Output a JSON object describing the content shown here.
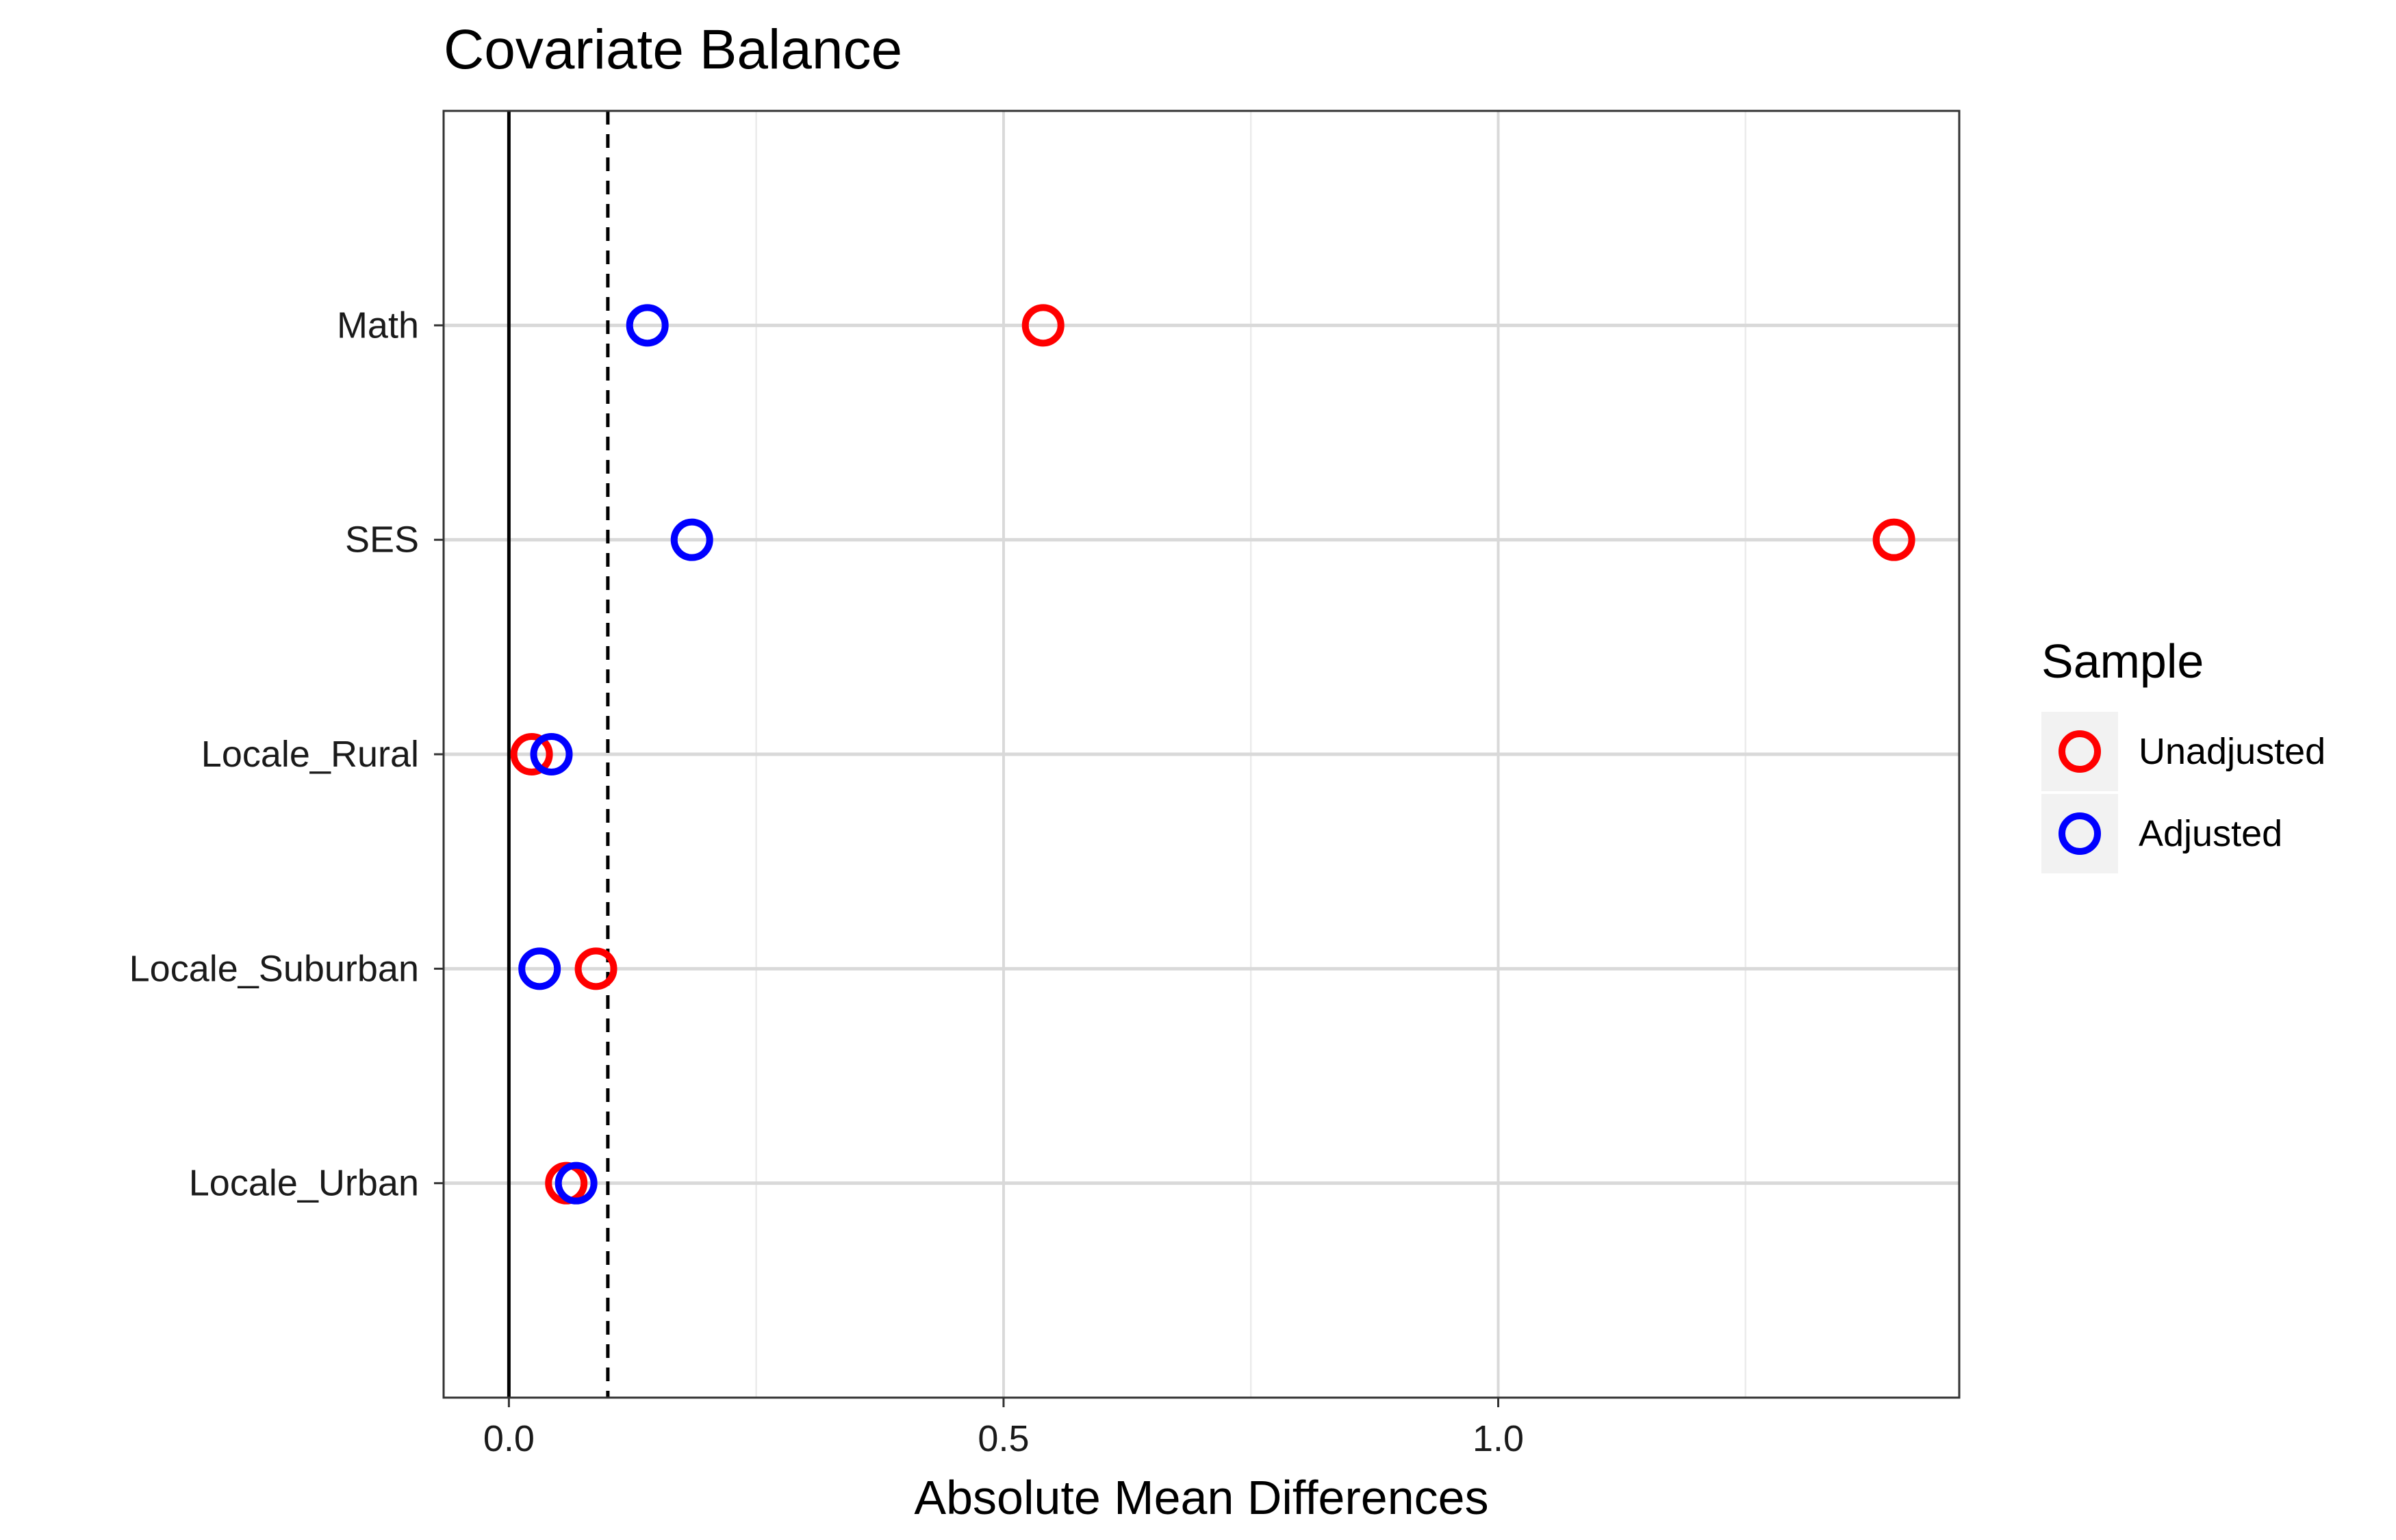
{
  "chart_data": {
    "type": "scatter",
    "title": "Covariate Balance",
    "xlabel": "Absolute Mean Differences",
    "ylabel": "",
    "xlim": [
      -0.066,
      1.466
    ],
    "x_ticks": [
      0.0,
      0.5,
      1.0
    ],
    "x_tick_labels": [
      "0.0",
      "0.5",
      "1.0"
    ],
    "x_minor_gridlines": [
      0.25,
      0.75,
      1.25
    ],
    "categories": [
      "Math",
      "SES",
      "Locale_Rural",
      "Locale_Suburban",
      "Locale_Urban"
    ],
    "reference_lines": [
      {
        "x": 0.0,
        "style": "solid"
      },
      {
        "x": 0.1,
        "style": "dashed"
      }
    ],
    "grid": true,
    "legend": {
      "title": "Sample",
      "position": "right"
    },
    "series": [
      {
        "name": "Unadjusted",
        "color": "#ff0000",
        "values": [
          0.54,
          1.4,
          0.023,
          0.088,
          0.058
        ]
      },
      {
        "name": "Adjusted",
        "color": "#0000ff",
        "values": [
          0.14,
          0.185,
          0.043,
          0.031,
          0.068
        ]
      }
    ]
  }
}
